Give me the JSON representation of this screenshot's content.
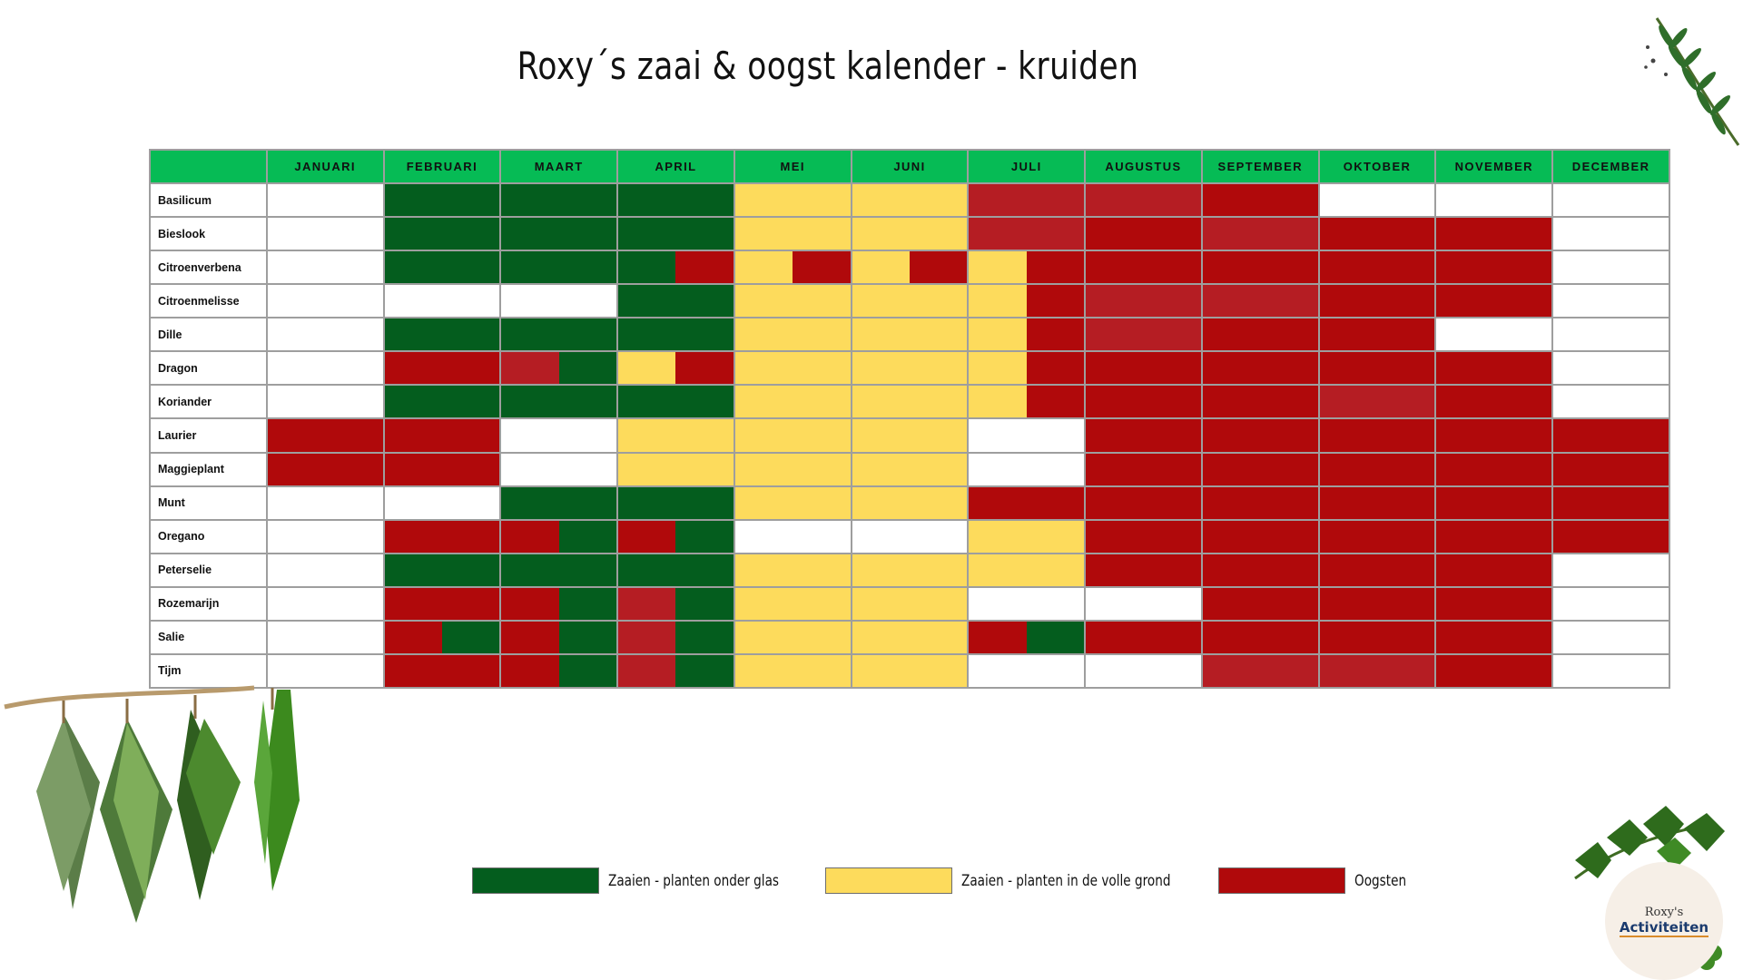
{
  "title": "Roxy´s zaai & oogst kalender - kruiden",
  "colors": {
    "G": "#045d1e",
    "Y": "#fddb5c",
    "R": "#b0090b",
    "r": "#b51d23",
    "W": "#ffffff",
    "header_bg": "#06bb55"
  },
  "chart_data": {
    "type": "table",
    "months": [
      "JANUARI",
      "FEBRUARI",
      "MAART",
      "APRIL",
      "MEI",
      "JUNI",
      "JULI",
      "AUGUSTUS",
      "SEPTEMBER",
      "OKTOBER",
      "NOVEMBER",
      "DECEMBER"
    ],
    "legend": [
      {
        "key": "G",
        "label": "Zaaien - planten onder glas"
      },
      {
        "key": "Y",
        "label": "Zaaien - planten in de volle grond"
      },
      {
        "key": "R",
        "label": "Oogsten"
      }
    ],
    "rows": [
      {
        "herb": "Basilicum",
        "cells": [
          "W",
          "G",
          "G",
          "G",
          "Y",
          "Y",
          "r",
          "r",
          "R",
          "W",
          "W",
          "W"
        ]
      },
      {
        "herb": "Bieslook",
        "cells": [
          "W",
          "G",
          "G",
          "G",
          "Y",
          "Y",
          "r",
          "R",
          "r",
          "R",
          "R",
          "W"
        ]
      },
      {
        "herb": "Citroenverbena",
        "cells": [
          "W",
          "G",
          "G",
          "GR",
          "YR",
          "YR",
          "YR",
          "R",
          "R",
          "R",
          "R",
          "W"
        ]
      },
      {
        "herb": "Citroenmelisse",
        "cells": [
          "W",
          "W",
          "W",
          "G",
          "Y",
          "Y",
          "YR",
          "r",
          "r",
          "R",
          "R",
          "W"
        ]
      },
      {
        "herb": "Dille",
        "cells": [
          "W",
          "G",
          "G",
          "G",
          "Y",
          "Y",
          "YR",
          "r",
          "R",
          "R",
          "W",
          "W"
        ]
      },
      {
        "herb": "Dragon",
        "cells": [
          "W",
          "R",
          "rG",
          "YR",
          "Y",
          "Y",
          "YR",
          "R",
          "R",
          "R",
          "R",
          "W"
        ]
      },
      {
        "herb": "Koriander",
        "cells": [
          "W",
          "G",
          "G",
          "G",
          "Y",
          "Y",
          "YR",
          "R",
          "R",
          "r",
          "R",
          "W"
        ]
      },
      {
        "herb": "Laurier",
        "cells": [
          "R",
          "R",
          "W",
          "Y",
          "Y",
          "Y",
          "W",
          "R",
          "R",
          "R",
          "R",
          "R"
        ]
      },
      {
        "herb": "Maggieplant",
        "cells": [
          "R",
          "R",
          "W",
          "Y",
          "Y",
          "Y",
          "W",
          "R",
          "R",
          "R",
          "R",
          "R"
        ]
      },
      {
        "herb": "Munt",
        "cells": [
          "W",
          "W",
          "G",
          "G",
          "Y",
          "Y",
          "R",
          "R",
          "R",
          "R",
          "R",
          "R"
        ]
      },
      {
        "herb": "Oregano",
        "cells": [
          "W",
          "R",
          "RG",
          "RG",
          "W",
          "W",
          "Y",
          "R",
          "R",
          "R",
          "R",
          "R"
        ]
      },
      {
        "herb": "Peterselie",
        "cells": [
          "W",
          "G",
          "G",
          "G",
          "Y",
          "Y",
          "Y",
          "R",
          "R",
          "R",
          "R",
          "W"
        ]
      },
      {
        "herb": "Rozemarijn",
        "cells": [
          "W",
          "R",
          "RG",
          "rG",
          "Y",
          "Y",
          "W",
          "W",
          "R",
          "R",
          "R",
          "W"
        ]
      },
      {
        "herb": "Salie",
        "cells": [
          "W",
          "RG",
          "RG",
          "rG",
          "Y",
          "Y",
          "RG",
          "R",
          "R",
          "R",
          "R",
          "W"
        ]
      },
      {
        "herb": "Tijm",
        "cells": [
          "W",
          "R",
          "RG",
          "rG",
          "Y",
          "Y",
          "W",
          "W",
          "r",
          "r",
          "R",
          "W"
        ]
      }
    ]
  },
  "logo": {
    "line1": "Roxy's",
    "line2": "Activiteiten"
  },
  "decorations": {
    "top_right": "rosemary-sprig-icon",
    "bottom_left": "hanging-herb-bundles-icon",
    "bottom_right": "parsley-leaves-icon"
  }
}
